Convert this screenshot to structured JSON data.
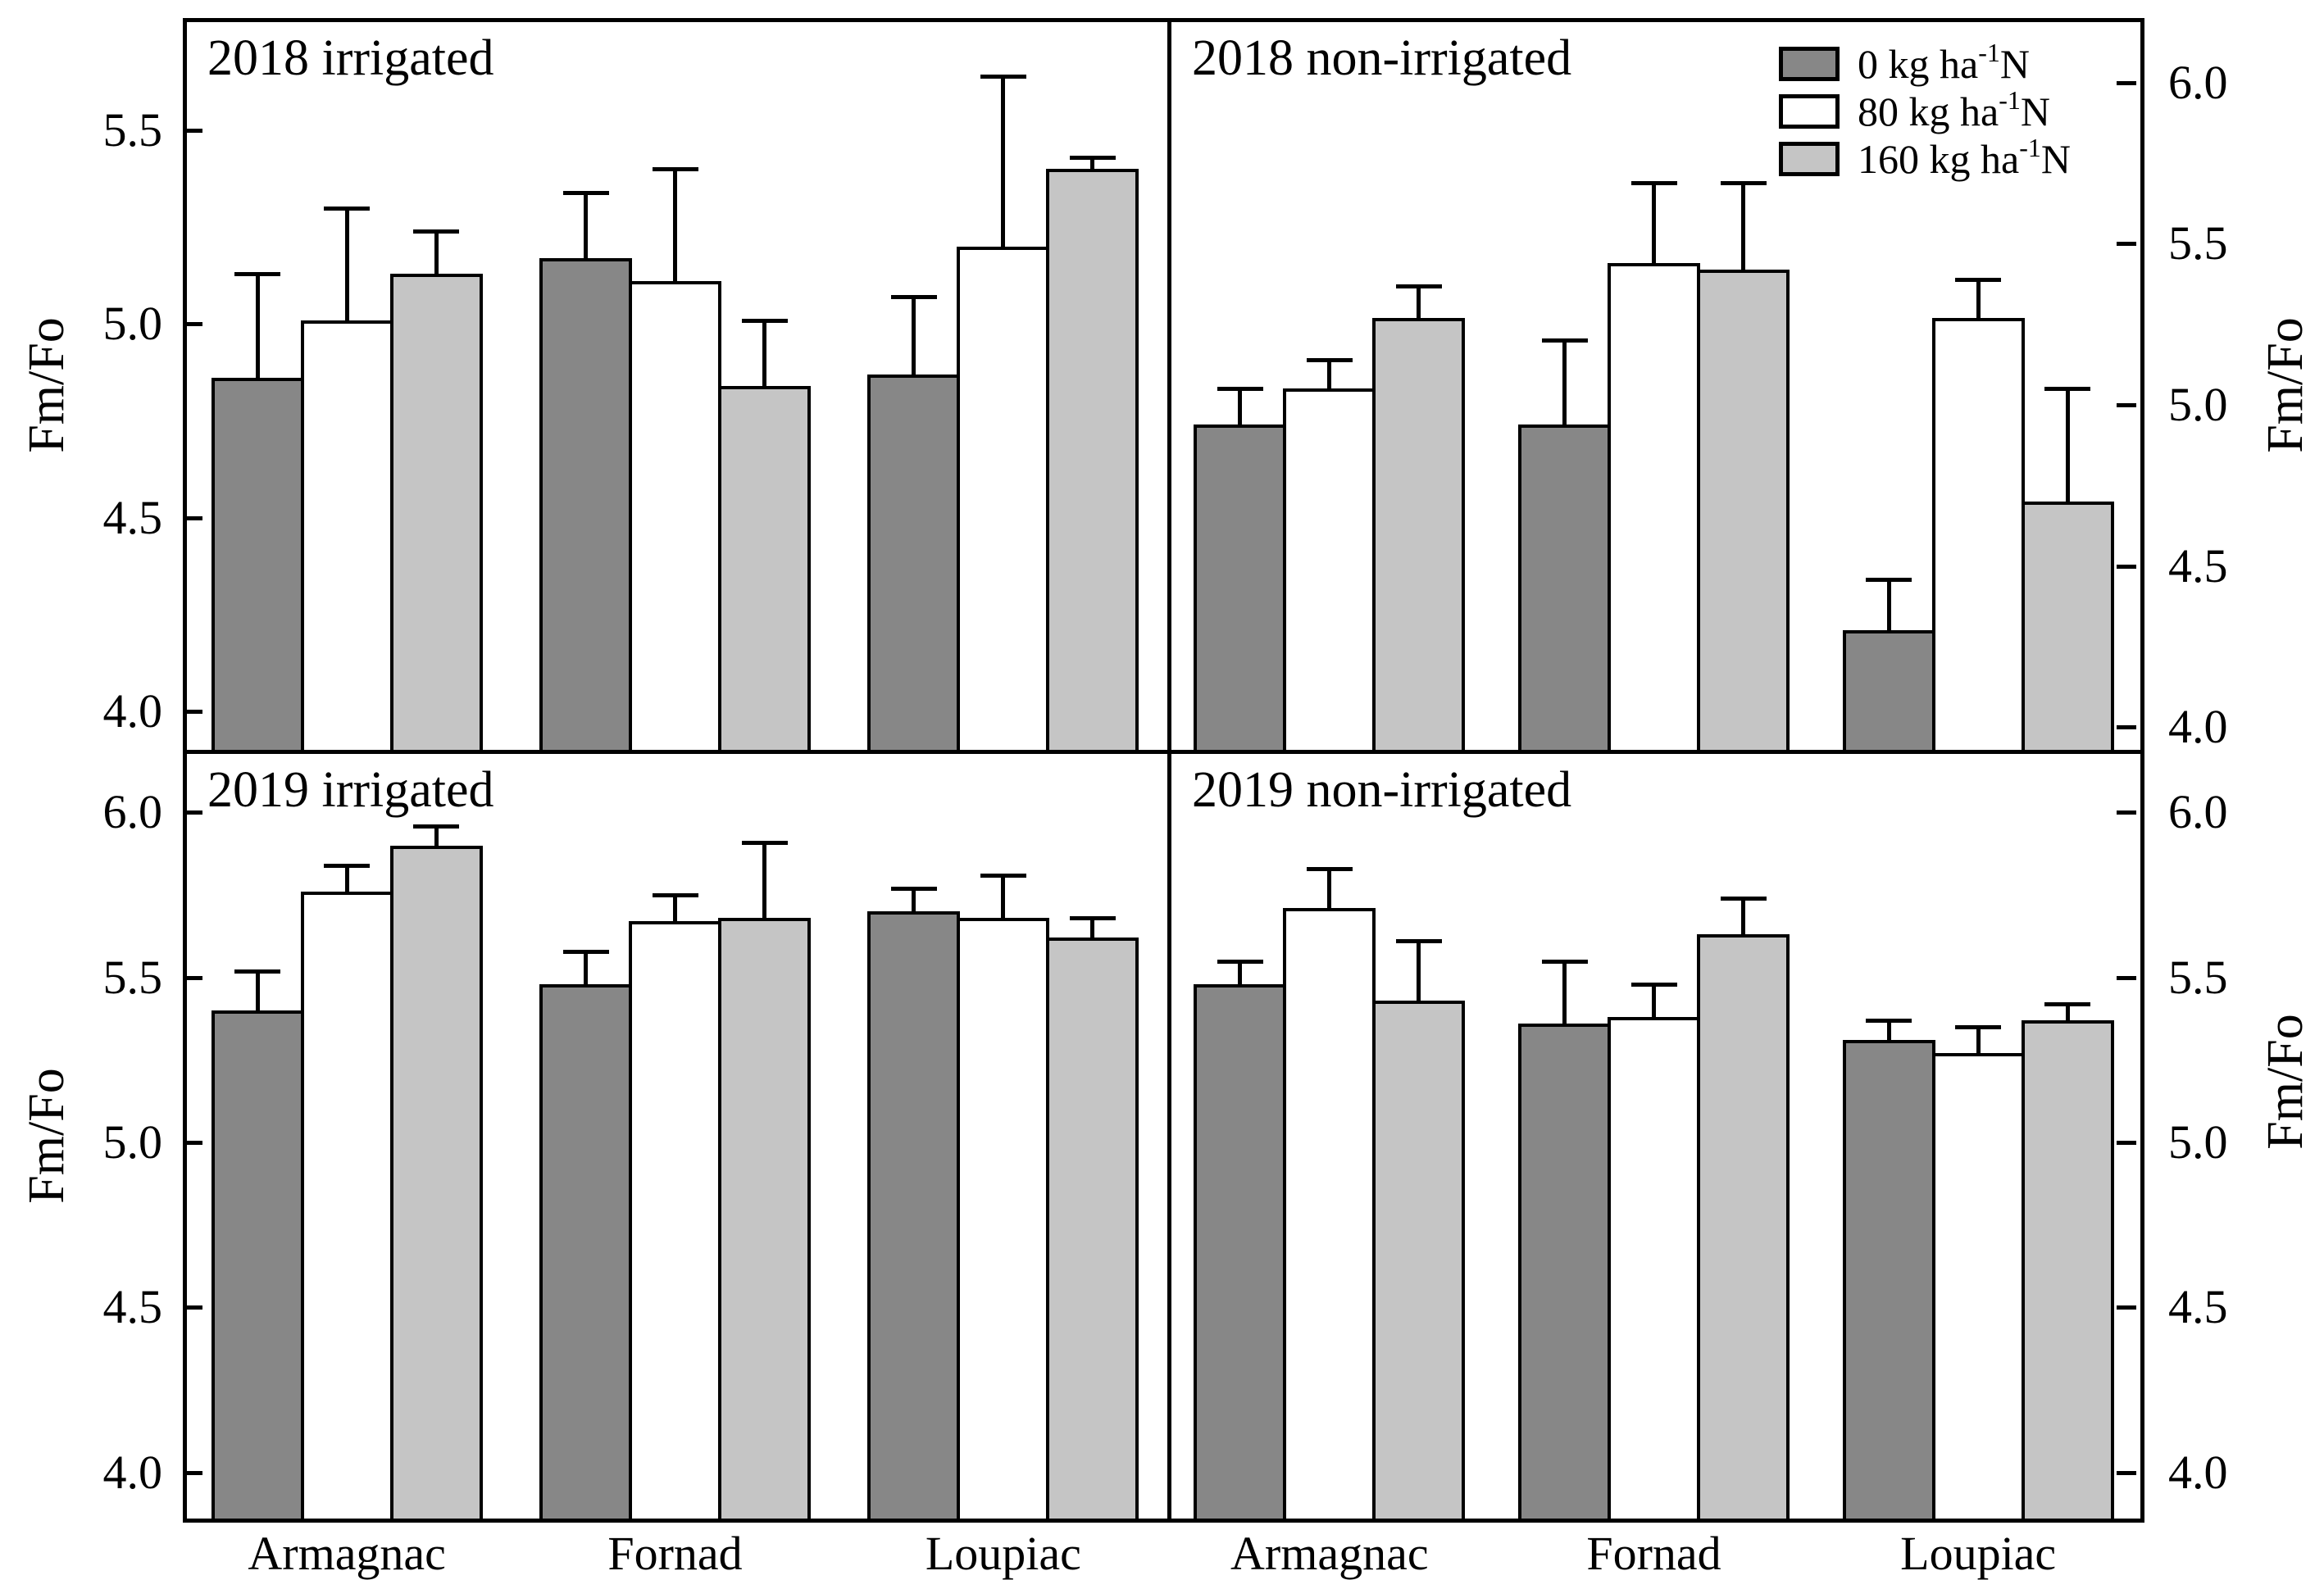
{
  "figure": {
    "background": "#ffffff",
    "line_color": "#000000"
  },
  "colors": {
    "n0": "#878787",
    "n80": "#ffffff",
    "n160": "#c5c5c5"
  },
  "legend": {
    "position": "top-right-panel",
    "entries": [
      {
        "base": "0 kg ha",
        "sup": "-1",
        "end": "N",
        "color_key": "n0"
      },
      {
        "base": "80 kg ha",
        "sup": "-1",
        "end": "N",
        "color_key": "n80"
      },
      {
        "base": "160 kg ha",
        "sup": "-1",
        "end": "N",
        "color_key": "n160"
      }
    ]
  },
  "chart_data": {
    "type": "bar",
    "grid": false,
    "ylabel": "Fm/Fo",
    "categories": [
      "Armagnac",
      "Fornad",
      "Loupiac"
    ],
    "series_names": [
      "0 kg ha⁻¹N",
      "80 kg ha⁻¹N",
      "160 kg ha⁻¹N"
    ],
    "error_bars": "upper, cap style",
    "panels": [
      {
        "title": "2018 irrigated",
        "axis_side": "left",
        "ylim": [
          3.9,
          5.79
        ],
        "yticks": [
          5.5,
          5.0,
          4.5,
          4.0
        ],
        "series": [
          {
            "name": "0 kg ha⁻¹N",
            "color_key": "n0",
            "values": [
              4.86,
              5.17,
              4.87
            ],
            "errors": [
              0.27,
              0.17,
              0.2
            ]
          },
          {
            "name": "80 kg ha⁻¹N",
            "color_key": "n80",
            "values": [
              5.01,
              5.11,
              5.2
            ],
            "errors": [
              0.29,
              0.29,
              0.44
            ]
          },
          {
            "name": "160 kg ha⁻¹N",
            "color_key": "n160",
            "values": [
              5.13,
              4.84,
              5.4
            ],
            "errors": [
              0.11,
              0.17,
              0.03
            ]
          }
        ]
      },
      {
        "title": "2018 non-irrigated",
        "axis_side": "right",
        "ylim": [
          3.93,
          6.2
        ],
        "yticks": [
          6.0,
          5.5,
          5.0,
          4.5,
          4.0
        ],
        "series": [
          {
            "name": "0 kg ha⁻¹N",
            "color_key": "n0",
            "values": [
              4.94,
              4.94,
              4.3
            ],
            "errors": [
              0.11,
              0.26,
              0.16
            ]
          },
          {
            "name": "80 kg ha⁻¹N",
            "color_key": "n80",
            "values": [
              5.05,
              5.44,
              5.27
            ],
            "errors": [
              0.09,
              0.25,
              0.12
            ]
          },
          {
            "name": "160 kg ha⁻¹N",
            "color_key": "n160",
            "values": [
              5.27,
              5.42,
              4.7
            ],
            "errors": [
              0.1,
              0.27,
              0.35
            ]
          }
        ]
      },
      {
        "title": "2019 irrigated",
        "axis_side": "left",
        "ylim": [
          3.86,
          6.19
        ],
        "yticks": [
          6.0,
          5.5,
          5.0,
          4.5,
          4.0
        ],
        "series": [
          {
            "name": "0 kg ha⁻¹N",
            "color_key": "n0",
            "values": [
              5.4,
              5.48,
              5.7
            ],
            "errors": [
              0.12,
              0.1,
              0.07
            ]
          },
          {
            "name": "80 kg ha⁻¹N",
            "color_key": "n80",
            "values": [
              5.76,
              5.67,
              5.68
            ],
            "errors": [
              0.08,
              0.08,
              0.13
            ]
          },
          {
            "name": "160 kg ha⁻¹N",
            "color_key": "n160",
            "values": [
              5.9,
              5.68,
              5.62
            ],
            "errors": [
              0.06,
              0.23,
              0.06
            ]
          }
        ]
      },
      {
        "title": "2019 non-irrigated",
        "axis_side": "right",
        "ylim": [
          3.86,
          6.19
        ],
        "yticks": [
          6.0,
          5.5,
          5.0,
          4.5,
          4.0
        ],
        "series": [
          {
            "name": "0 kg ha⁻¹N",
            "color_key": "n0",
            "values": [
              5.48,
              5.36,
              5.31
            ],
            "errors": [
              0.07,
              0.19,
              0.06
            ]
          },
          {
            "name": "80 kg ha⁻¹N",
            "color_key": "n80",
            "values": [
              5.71,
              5.38,
              5.27
            ],
            "errors": [
              0.12,
              0.1,
              0.08
            ]
          },
          {
            "name": "160 kg ha⁻¹N",
            "color_key": "n160",
            "values": [
              5.43,
              5.63,
              5.37
            ],
            "errors": [
              0.18,
              0.11,
              0.05
            ]
          }
        ]
      }
    ]
  }
}
